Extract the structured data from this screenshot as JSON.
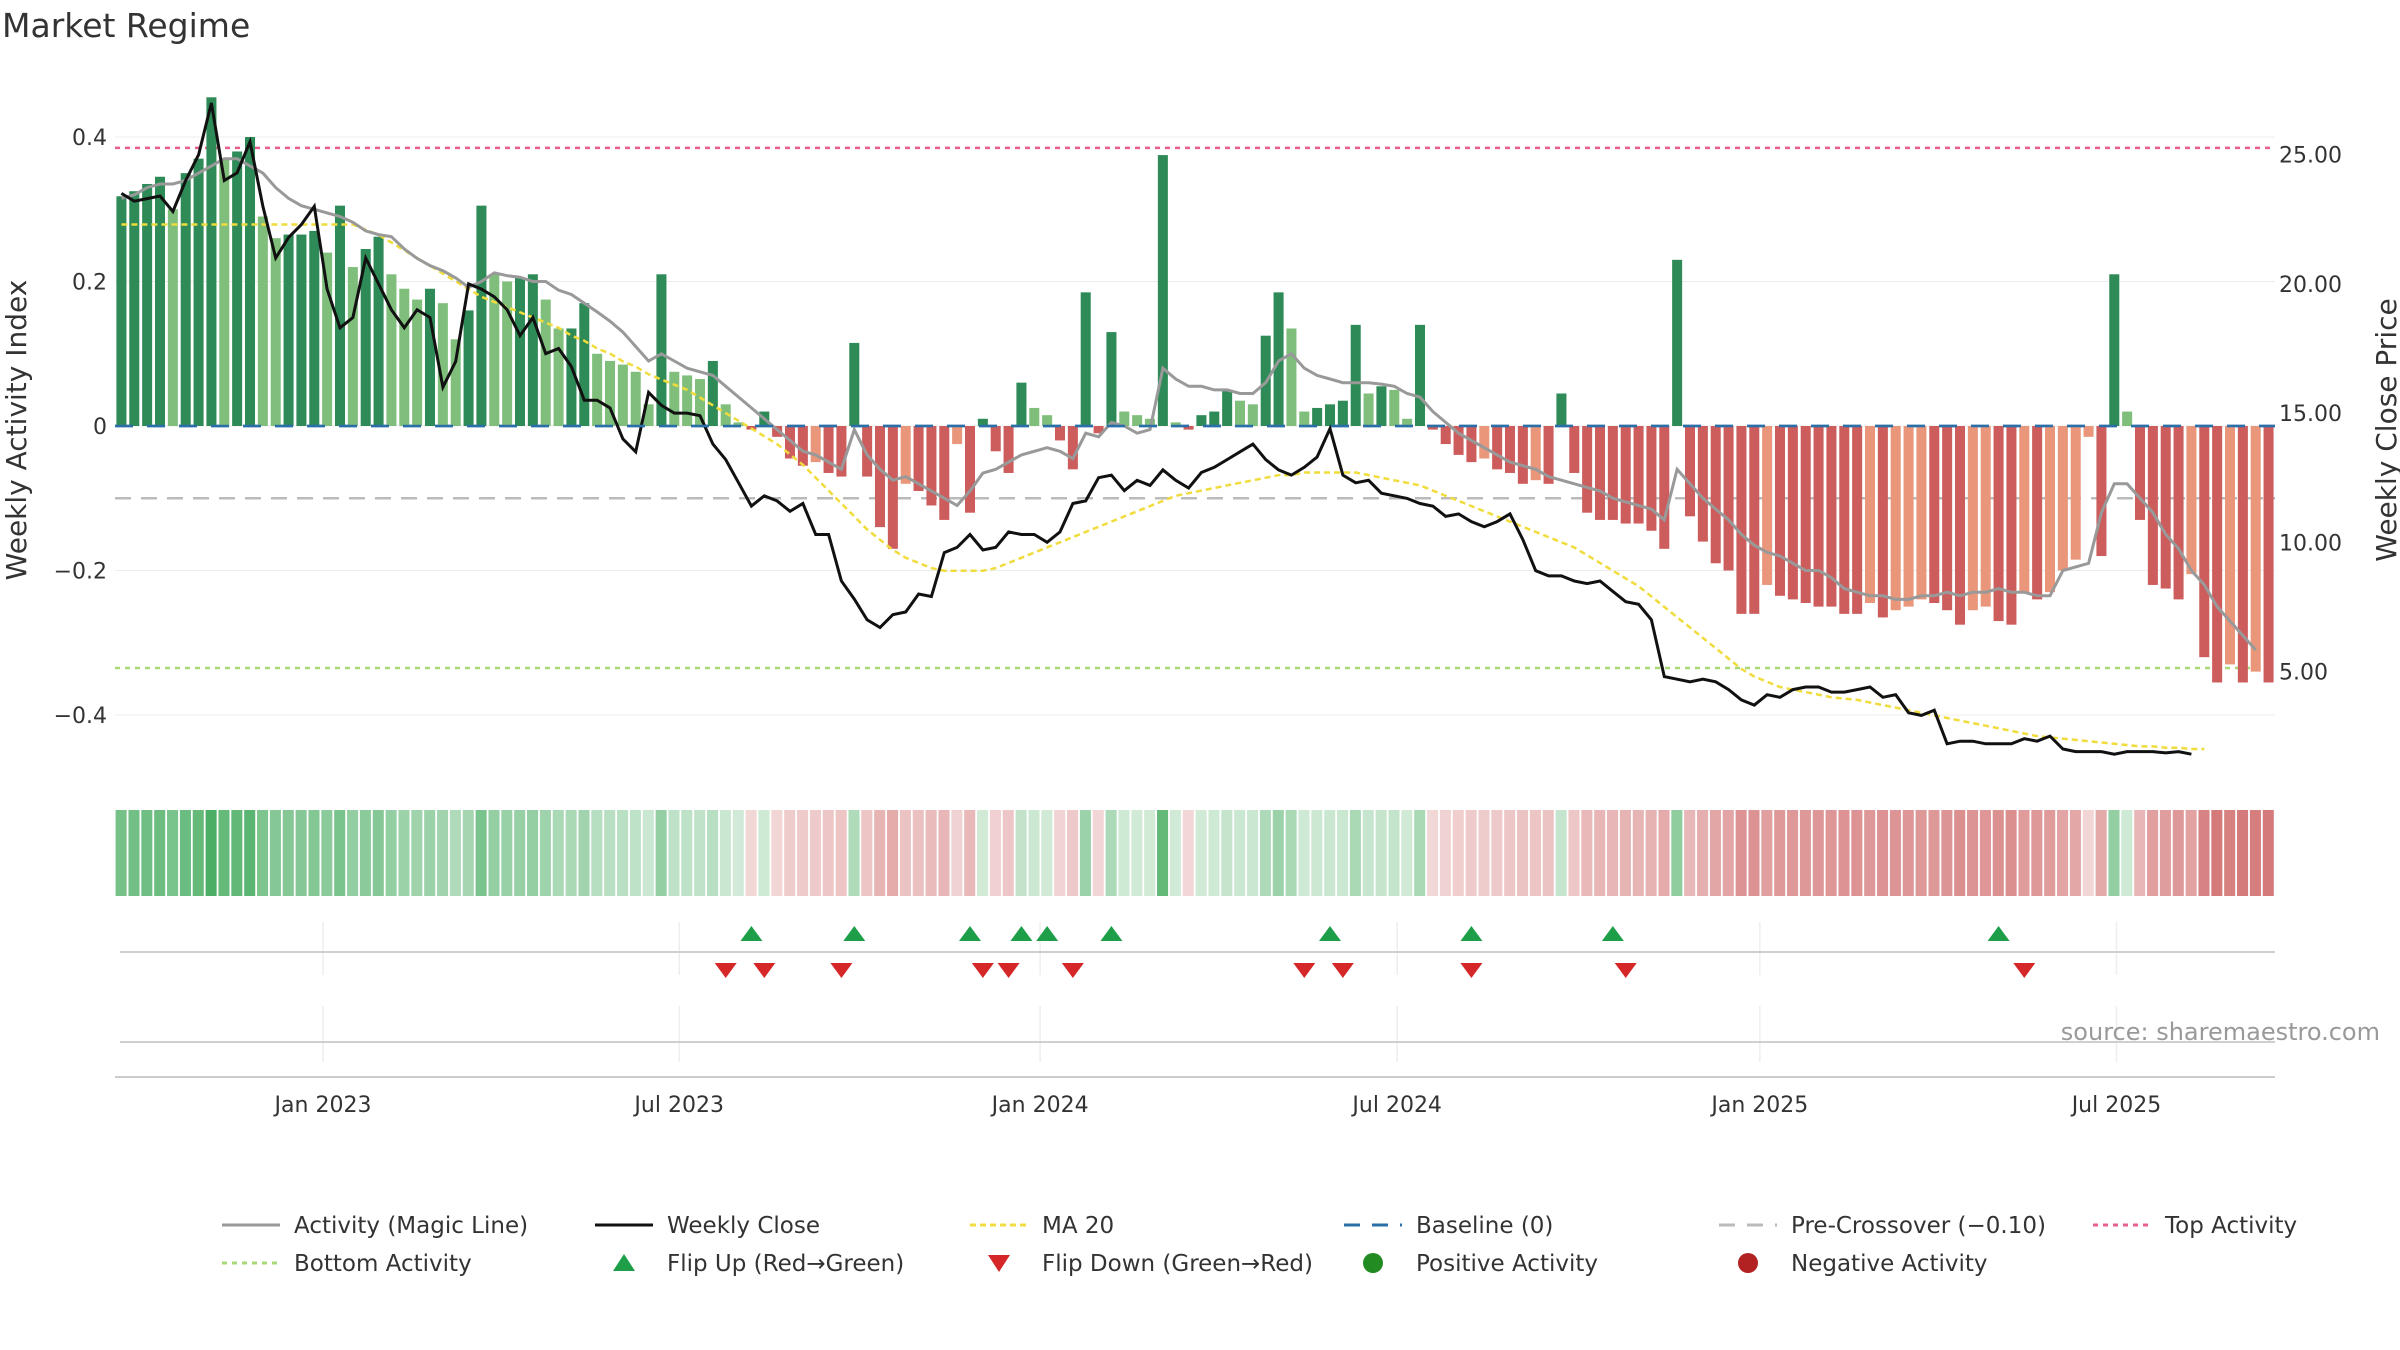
{
  "chart_data": {
    "type": "bar",
    "title": "Market Regime",
    "y_left_label": "Weekly Activity Index",
    "y_right_label": "Weekly Close Price",
    "y_left_ticks": [
      {
        "v": 0.4,
        "label": "0.4"
      },
      {
        "v": 0.2,
        "label": "0.2"
      },
      {
        "v": 0,
        "label": "0"
      },
      {
        "v": -0.2,
        "label": "−0.2"
      },
      {
        "v": -0.4,
        "label": "−0.4"
      }
    ],
    "y_right_ticks": [
      {
        "v": 25,
        "label": "25.00"
      },
      {
        "v": 20,
        "label": "20.00"
      },
      {
        "v": 15,
        "label": "15.00"
      },
      {
        "v": 10,
        "label": "10.00"
      },
      {
        "v": 5,
        "label": "5.00"
      }
    ],
    "ylim_left": [
      -0.49,
      0.49
    ],
    "ylim_right": [
      0.8,
      28.2
    ],
    "x_ticks": [
      {
        "t": 0.0963,
        "label": "Jan 2023"
      },
      {
        "t": 0.2612,
        "label": "Jul 2023"
      },
      {
        "t": 0.4283,
        "label": "Jan 2024"
      },
      {
        "t": 0.5936,
        "label": "Jul 2024"
      },
      {
        "t": 0.7615,
        "label": "Jan 2025"
      },
      {
        "t": 0.9266,
        "label": "Jul 2025"
      }
    ],
    "x_range": [
      "2022-10-17",
      "2025-09-29"
    ],
    "reference_lines": {
      "baseline": 0,
      "pre_crossover": -0.1,
      "top_activity": 0.385,
      "bottom_activity": -0.335
    },
    "series": [
      {
        "name": "Weekly Activity Index",
        "values": [
          0.318,
          0.325,
          0.335,
          0.345,
          0.3,
          0.35,
          0.37,
          0.455,
          0.37,
          0.38,
          0.4,
          0.29,
          0.26,
          0.265,
          0.265,
          0.27,
          0.24,
          0.305,
          0.22,
          0.245,
          0.262,
          0.21,
          0.19,
          0.175,
          0.19,
          0.17,
          0.12,
          0.16,
          0.305,
          0.21,
          0.2,
          0.205,
          0.21,
          0.175,
          0.135,
          0.135,
          0.17,
          0.1,
          0.09,
          0.085,
          0.075,
          0.03,
          0.21,
          0.075,
          0.07,
          0.065,
          0.09,
          0.03,
          0.005,
          -0.005,
          0.02,
          -0.015,
          -0.045,
          -0.055,
          -0.05,
          -0.065,
          -0.07,
          0.115,
          -0.07,
          -0.14,
          -0.17,
          -0.08,
          -0.09,
          -0.11,
          -0.13,
          -0.025,
          -0.12,
          0.01,
          -0.035,
          -0.065,
          0.06,
          0.025,
          0.015,
          -0.02,
          -0.06,
          0.185,
          -0.01,
          0.13,
          0.02,
          0.015,
          0.01,
          0.375,
          0.005,
          -0.005,
          0.015,
          0.02,
          0.05,
          0.035,
          0.03,
          0.125,
          0.185,
          0.135,
          0.02,
          0.025,
          0.03,
          0.035,
          0.14,
          0.045,
          0.055,
          0.05,
          0.01,
          0.14,
          -0.005,
          -0.025,
          -0.04,
          -0.05,
          -0.045,
          -0.06,
          -0.065,
          -0.08,
          -0.075,
          -0.08,
          0.045,
          -0.065,
          -0.12,
          -0.13,
          -0.13,
          -0.135,
          -0.135,
          -0.145,
          -0.17,
          0.23,
          -0.125,
          -0.16,
          -0.19,
          -0.2,
          -0.26,
          -0.26,
          -0.22,
          -0.235,
          -0.24,
          -0.245,
          -0.25,
          -0.25,
          -0.26,
          -0.26,
          -0.245,
          -0.265,
          -0.255,
          -0.25,
          -0.24,
          -0.245,
          -0.255,
          -0.275,
          -0.255,
          -0.25,
          -0.27,
          -0.275,
          -0.23,
          -0.24,
          -0.23,
          -0.2,
          -0.185,
          -0.015,
          -0.18,
          0.21,
          0.02,
          -0.13,
          -0.22,
          -0.225,
          -0.24,
          -0.205,
          -0.32,
          -0.355,
          -0.33,
          -0.355,
          -0.34,
          -0.355
        ]
      },
      {
        "name": "Activity (Magic Line)",
        "values": [
          0.315,
          0.32,
          0.33,
          0.335,
          0.335,
          0.34,
          0.35,
          0.36,
          0.37,
          0.37,
          0.36,
          0.35,
          0.33,
          0.315,
          0.305,
          0.3,
          0.295,
          0.29,
          0.282,
          0.27,
          0.265,
          0.262,
          0.245,
          0.232,
          0.222,
          0.215,
          0.205,
          0.192,
          0.2,
          0.212,
          0.208,
          0.206,
          0.2,
          0.2,
          0.188,
          0.182,
          0.17,
          0.158,
          0.145,
          0.13,
          0.11,
          0.09,
          0.1,
          0.09,
          0.08,
          0.075,
          0.07,
          0.055,
          0.04,
          0.025,
          0.01,
          -0.005,
          -0.02,
          -0.035,
          -0.04,
          -0.05,
          -0.06,
          -0.005,
          -0.04,
          -0.06,
          -0.075,
          -0.07,
          -0.08,
          -0.09,
          -0.1,
          -0.11,
          -0.09,
          -0.065,
          -0.06,
          -0.05,
          -0.04,
          -0.035,
          -0.03,
          -0.035,
          -0.045,
          -0.01,
          -0.015,
          0.005,
          0.0,
          -0.01,
          -0.005,
          0.08,
          0.065,
          0.055,
          0.055,
          0.05,
          0.05,
          0.045,
          0.045,
          0.06,
          0.09,
          0.1,
          0.08,
          0.07,
          0.065,
          0.06,
          0.06,
          0.06,
          0.058,
          0.055,
          0.045,
          0.04,
          0.02,
          0.005,
          -0.01,
          -0.02,
          -0.03,
          -0.04,
          -0.05,
          -0.055,
          -0.06,
          -0.07,
          -0.075,
          -0.08,
          -0.085,
          -0.09,
          -0.1,
          -0.105,
          -0.11,
          -0.115,
          -0.13,
          -0.06,
          -0.08,
          -0.1,
          -0.115,
          -0.13,
          -0.15,
          -0.165,
          -0.175,
          -0.18,
          -0.19,
          -0.2,
          -0.2,
          -0.21,
          -0.225,
          -0.23,
          -0.235,
          -0.235,
          -0.24,
          -0.24,
          -0.235,
          -0.235,
          -0.23,
          -0.235,
          -0.23,
          -0.23,
          -0.225,
          -0.23,
          -0.23,
          -0.235,
          -0.235,
          -0.2,
          -0.195,
          -0.19,
          -0.12,
          -0.08,
          -0.08,
          -0.1,
          -0.12,
          -0.15,
          -0.17,
          -0.2,
          -0.22,
          -0.25,
          -0.27,
          -0.29,
          -0.31
        ]
      },
      {
        "name": "Weekly Close",
        "values": [
          23.5,
          23.2,
          23.3,
          23.4,
          22.8,
          24.0,
          25.0,
          27.0,
          24.0,
          24.3,
          25.5,
          23.0,
          21.0,
          21.8,
          22.3,
          23.0,
          19.8,
          18.3,
          18.7,
          21.0,
          20.0,
          19.0,
          18.3,
          19.0,
          18.7,
          16.0,
          17.0,
          20.0,
          19.8,
          19.5,
          19.0,
          18.0,
          18.7,
          17.3,
          17.5,
          16.8,
          15.5,
          15.5,
          15.2,
          14.0,
          13.5,
          15.8,
          15.3,
          15.0,
          15.0,
          14.9,
          13.8,
          13.2,
          12.3,
          11.4,
          11.8,
          11.6,
          11.2,
          11.5,
          10.3,
          10.3,
          8.5,
          7.8,
          7.0,
          6.7,
          7.2,
          7.3,
          8.0,
          7.9,
          9.6,
          9.8,
          10.3,
          9.7,
          9.8,
          10.4,
          10.3,
          10.3,
          10.0,
          10.4,
          11.5,
          11.6,
          12.5,
          12.6,
          12.0,
          12.4,
          12.2,
          12.8,
          12.4,
          12.1,
          12.7,
          12.9,
          13.2,
          13.5,
          13.8,
          13.2,
          12.8,
          12.6,
          12.9,
          13.3,
          14.4,
          12.6,
          12.3,
          12.4,
          11.9,
          11.8,
          11.7,
          11.5,
          11.4,
          11.0,
          11.1,
          10.8,
          10.6,
          10.8,
          11.1,
          10.1,
          8.9,
          8.7,
          8.7,
          8.5,
          8.4,
          8.5,
          8.1,
          7.7,
          7.6,
          7.0,
          4.8,
          4.7,
          4.6,
          4.7,
          4.6,
          4.3,
          3.9,
          3.7,
          4.1,
          4.0,
          4.3,
          4.4,
          4.4,
          4.2,
          4.2,
          4.3,
          4.4,
          4.0,
          4.1,
          3.4,
          3.3,
          3.5,
          2.2,
          2.3,
          2.3,
          2.2,
          2.2,
          2.2,
          2.4,
          2.3,
          2.5,
          2.0,
          1.9,
          1.9,
          1.9,
          1.8,
          1.9,
          1.9,
          1.9,
          1.85,
          1.9,
          1.8
        ]
      },
      {
        "name": "MA 20",
        "values": [
          22.3,
          22.3,
          22.3,
          22.3,
          22.3,
          22.3,
          22.3,
          22.3,
          22.3,
          22.3,
          22.3,
          22.3,
          22.3,
          22.3,
          22.3,
          22.3,
          22.3,
          22.3,
          22.3,
          22.1,
          21.9,
          21.6,
          21.3,
          21.0,
          20.7,
          20.4,
          20.1,
          19.8,
          19.5,
          19.3,
          19.1,
          18.9,
          18.7,
          18.5,
          18.3,
          18.0,
          17.8,
          17.5,
          17.3,
          17.0,
          16.8,
          16.5,
          16.3,
          16.1,
          15.9,
          15.6,
          15.3,
          15.0,
          14.7,
          14.4,
          14.1,
          13.8,
          13.4,
          13.0,
          12.5,
          12.0,
          11.5,
          11.0,
          10.5,
          10.1,
          9.7,
          9.4,
          9.2,
          9.0,
          8.9,
          8.9,
          8.9,
          8.9,
          9.0,
          9.2,
          9.4,
          9.6,
          9.8,
          10.0,
          10.2,
          10.4,
          10.6,
          10.8,
          11.0,
          11.2,
          11.4,
          11.6,
          11.8,
          11.9,
          12.0,
          12.1,
          12.2,
          12.3,
          12.4,
          12.5,
          12.6,
          12.6,
          12.7,
          12.7,
          12.7,
          12.7,
          12.7,
          12.6,
          12.5,
          12.4,
          12.3,
          12.2,
          12.0,
          11.8,
          11.6,
          11.4,
          11.2,
          11.0,
          10.8,
          10.6,
          10.4,
          10.2,
          10.0,
          9.8,
          9.5,
          9.2,
          8.9,
          8.6,
          8.3,
          7.9,
          7.5,
          7.1,
          6.7,
          6.3,
          5.9,
          5.5,
          5.1,
          4.8,
          4.6,
          4.4,
          4.3,
          4.2,
          4.1,
          4.0,
          3.95,
          3.9,
          3.8,
          3.7,
          3.6,
          3.5,
          3.4,
          3.3,
          3.2,
          3.1,
          3.0,
          2.9,
          2.8,
          2.7,
          2.6,
          2.5,
          2.45,
          2.4,
          2.35,
          2.3,
          2.25,
          2.2,
          2.15,
          2.1,
          2.1,
          2.05,
          2.05,
          2.0,
          2.0
        ]
      }
    ],
    "flip_up_index": [
      49,
      57,
      66,
      70,
      72,
      77,
      94,
      105,
      116,
      146
    ],
    "flip_down_index": [
      47,
      50,
      56,
      67,
      69,
      74,
      92,
      95,
      105,
      117,
      148
    ],
    "legend": {
      "activity": "Activity (Magic Line)",
      "close": "Weekly Close",
      "ma": "MA 20",
      "baseline": "Baseline (0)",
      "pre": "Pre-Crossover (−0.10)",
      "top": "Top Activity",
      "bottom": "Bottom Activity",
      "flip_up": "Flip Up (Red→Green)",
      "flip_down": "Flip Down (Green→Red)",
      "positive": "Positive Activity",
      "negative": "Negative Activity"
    },
    "source": "source: sharemaestro.com",
    "colors": {
      "pos_strong": "#2e8b57",
      "pos_light": "#7fbf7b",
      "neg_strong": "#cd5c5c",
      "neg_light": "#e9967a",
      "magic": "#999999",
      "close": "#111111",
      "ma": "#f0dc3c",
      "baseline": "#2b6fa8",
      "pre": "#bbbbbb",
      "top": "#e8608a",
      "bottom": "#a8d878",
      "flip_up": "#1f9e4a",
      "flip_down": "#d62728",
      "pos_dot": "#228b22",
      "neg_dot": "#b22222"
    }
  }
}
